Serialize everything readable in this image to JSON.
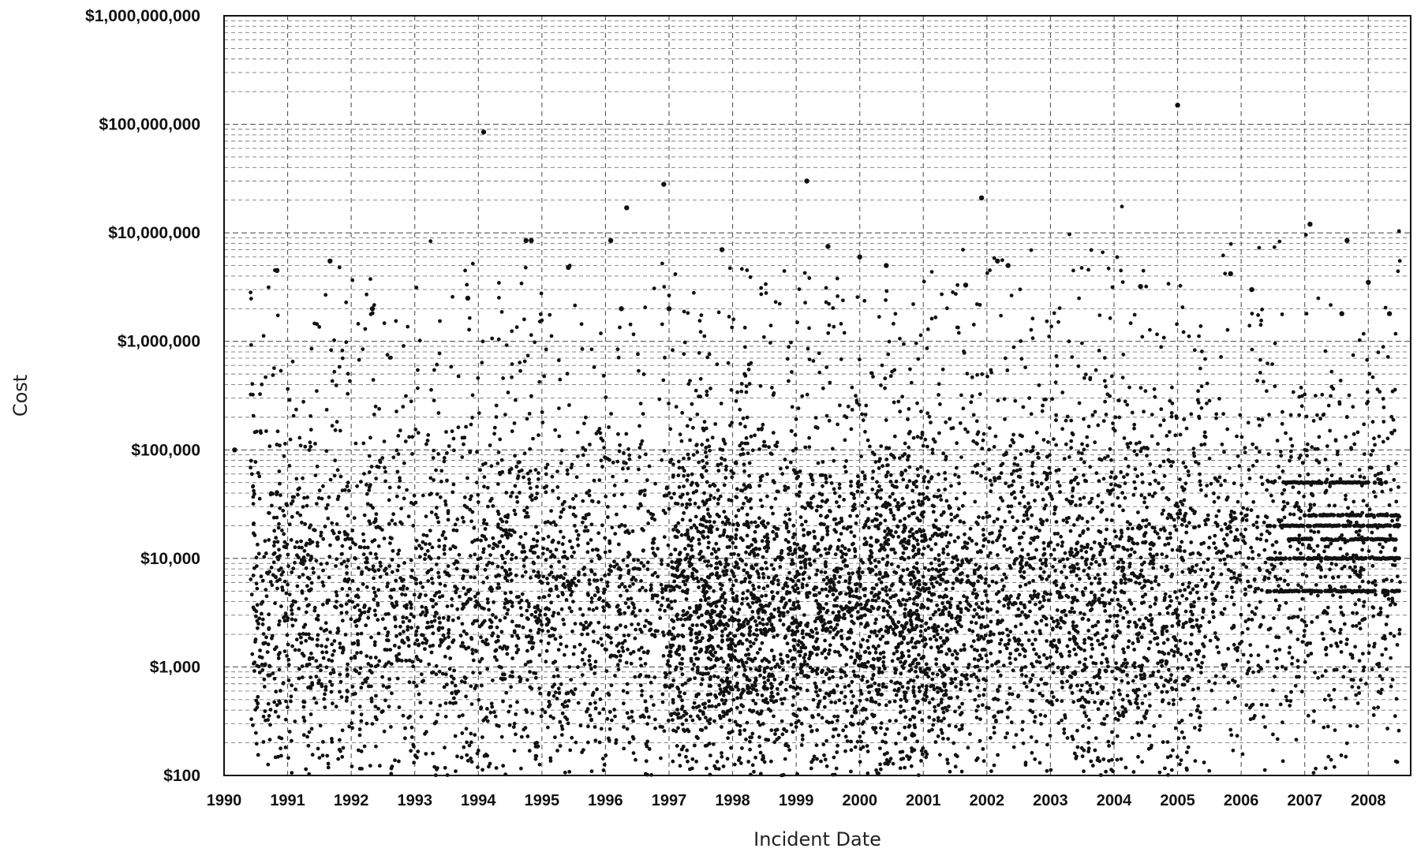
{
  "chart_data": {
    "type": "scatter",
    "title": "",
    "xlabel": "Incident Date",
    "ylabel": "Cost",
    "y_scale": "log",
    "ylim": [
      100,
      1000000000
    ],
    "xlim": [
      "1990-01-01",
      "2008-09-01"
    ],
    "grid": {
      "x": true,
      "y_major": true,
      "y_minor": true,
      "style": "dashed"
    },
    "legend": "none",
    "marker_color": "#111111",
    "y_ticks": [
      {
        "value": 100,
        "label": "$100"
      },
      {
        "value": 1000,
        "label": "$1,000"
      },
      {
        "value": 10000,
        "label": "$10,000"
      },
      {
        "value": 100000,
        "label": "$100,000"
      },
      {
        "value": 1000000,
        "label": "$1,000,000"
      },
      {
        "value": 10000000,
        "label": "$10,000,000"
      },
      {
        "value": 100000000,
        "label": "$100,000,000"
      },
      {
        "value": 1000000000,
        "label": "$1,000,000,000"
      }
    ],
    "x_ticks": [
      "1990",
      "1991",
      "1992",
      "1993",
      "1994",
      "1995",
      "1996",
      "1997",
      "1998",
      "1999",
      "2000",
      "2001",
      "2002",
      "2003",
      "2004",
      "2005",
      "2006",
      "2007",
      "2008"
    ],
    "series": [
      {
        "points": [
          {
            "x": "1994-02-01",
            "y": 85000000
          },
          {
            "x": "2005-01-01",
            "y": 150000000
          },
          {
            "x": "1996-12-01",
            "y": 28000000
          },
          {
            "x": "1999-03-01",
            "y": 30000000
          },
          {
            "x": "1996-05-01",
            "y": 17000000
          },
          {
            "x": "2001-12-01",
            "y": 21000000
          },
          {
            "x": "2007-02-01",
            "y": 12000000
          },
          {
            "x": "1994-10-01",
            "y": 8500000
          },
          {
            "x": "1994-11-01",
            "y": 8500000
          },
          {
            "x": "1996-02-01",
            "y": 8500000
          },
          {
            "x": "1997-11-01",
            "y": 7000000
          },
          {
            "x": "1999-07-01",
            "y": 7500000
          },
          {
            "x": "2007-09-01",
            "y": 8500000
          },
          {
            "x": "1991-09-01",
            "y": 5500000
          },
          {
            "x": "1990-11-01",
            "y": 4500000
          },
          {
            "x": "1995-06-01",
            "y": 4800000
          },
          {
            "x": "2000-01-01",
            "y": 6000000
          },
          {
            "x": "2000-06-01",
            "y": 5000000
          },
          {
            "x": "2002-03-01",
            "y": 5500000
          },
          {
            "x": "2002-05-01",
            "y": 5000000
          },
          {
            "x": "2005-11-01",
            "y": 4200000
          },
          {
            "x": "2001-09-01",
            "y": 3300000
          },
          {
            "x": "2006-03-01",
            "y": 3000000
          },
          {
            "x": "2008-01-01",
            "y": 3500000
          },
          {
            "x": "1993-11-01",
            "y": 2500000
          },
          {
            "x": "1996-04-01",
            "y": 2000000
          },
          {
            "x": "1997-01-01",
            "y": 2000000
          },
          {
            "x": "2004-06-01",
            "y": 3200000
          },
          {
            "x": "2007-08-01",
            "y": 1800000
          },
          {
            "x": "2008-05-01",
            "y": 1800000
          },
          {
            "x": "1992-05-01",
            "y": 2000000
          },
          {
            "x": "1990-03-01",
            "y": 100000
          }
        ],
        "cloud": [
          {
            "from": "1990-06-01",
            "to": "1997-01-01",
            "y_center": 3500,
            "spread_decades": 0.9,
            "n": 2600
          },
          {
            "from": "1997-01-01",
            "to": "2001-06-01",
            "y_center": 3000,
            "spread_decades": 0.85,
            "n": 3200
          },
          {
            "from": "2001-06-01",
            "to": "2005-06-01",
            "y_center": 4500,
            "spread_decades": 0.95,
            "n": 2000
          },
          {
            "from": "2005-06-01",
            "to": "2008-07-01",
            "y_center": 7000,
            "spread_decades": 0.9,
            "n": 900
          }
        ],
        "horizontal_bands": [
          {
            "from": "2006-06-01",
            "to": "2008-07-01",
            "y": 5000
          },
          {
            "from": "2006-06-01",
            "to": "2008-07-01",
            "y": 10000
          },
          {
            "from": "2006-10-01",
            "to": "2008-07-01",
            "y": 15000
          },
          {
            "from": "2006-06-01",
            "to": "2008-07-01",
            "y": 20000
          },
          {
            "from": "2007-01-01",
            "to": "2008-07-01",
            "y": 25000
          },
          {
            "from": "2006-09-01",
            "to": "2008-07-01",
            "y": 50000
          }
        ]
      }
    ]
  }
}
